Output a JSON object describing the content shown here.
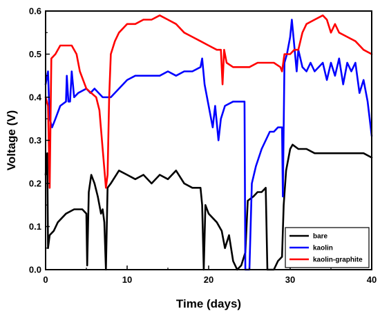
{
  "chart_data": {
    "type": "line",
    "title": "",
    "xlabel": "Time (days)",
    "ylabel": "Voltage (V)",
    "xlim": [
      0,
      40
    ],
    "ylim": [
      0,
      0.6
    ],
    "x_ticks": [
      "0",
      "10",
      "20",
      "30",
      "40"
    ],
    "y_ticks": [
      "0.0",
      "0.1",
      "0.2",
      "0.3",
      "0.4",
      "0.5",
      "0.6"
    ],
    "grid": false,
    "legend_position": "bottom-right",
    "series": [
      {
        "name": "bare",
        "color": "#000000",
        "points": [
          [
            0.0,
            0.22
          ],
          [
            0.2,
            0.27
          ],
          [
            0.3,
            0.05
          ],
          [
            0.5,
            0.08
          ],
          [
            1.0,
            0.09
          ],
          [
            1.5,
            0.11
          ],
          [
            2.5,
            0.13
          ],
          [
            3.5,
            0.14
          ],
          [
            4.5,
            0.14
          ],
          [
            5.0,
            0.13
          ],
          [
            5.1,
            0.01
          ],
          [
            5.3,
            0.18
          ],
          [
            5.6,
            0.22
          ],
          [
            6.0,
            0.2
          ],
          [
            6.4,
            0.17
          ],
          [
            6.8,
            0.13
          ],
          [
            7.0,
            0.14
          ],
          [
            7.2,
            0.11
          ],
          [
            7.4,
            0.0
          ],
          [
            7.6,
            0.19
          ],
          [
            8.0,
            0.2
          ],
          [
            9.0,
            0.23
          ],
          [
            10.0,
            0.22
          ],
          [
            11.0,
            0.21
          ],
          [
            12.0,
            0.22
          ],
          [
            13.0,
            0.2
          ],
          [
            14.0,
            0.22
          ],
          [
            15.0,
            0.21
          ],
          [
            16.0,
            0.23
          ],
          [
            17.0,
            0.2
          ],
          [
            18.0,
            0.19
          ],
          [
            19.0,
            0.19
          ],
          [
            19.2,
            0.15
          ],
          [
            19.4,
            0.0
          ],
          [
            19.6,
            0.15
          ],
          [
            20.0,
            0.13
          ],
          [
            21.0,
            0.11
          ],
          [
            21.6,
            0.09
          ],
          [
            22.0,
            0.05
          ],
          [
            22.5,
            0.08
          ],
          [
            23.0,
            0.02
          ],
          [
            23.5,
            0.0
          ],
          [
            24.0,
            0.01
          ],
          [
            24.5,
            0.04
          ],
          [
            24.8,
            0.16
          ],
          [
            25.5,
            0.17
          ],
          [
            26.0,
            0.18
          ],
          [
            26.5,
            0.18
          ],
          [
            27.0,
            0.19
          ],
          [
            27.2,
            0.0
          ],
          [
            28.0,
            0.0
          ],
          [
            28.5,
            0.02
          ],
          [
            29.0,
            0.03
          ],
          [
            29.2,
            0.15
          ],
          [
            29.5,
            0.23
          ],
          [
            30.0,
            0.28
          ],
          [
            30.3,
            0.29
          ],
          [
            31.0,
            0.28
          ],
          [
            32.0,
            0.28
          ],
          [
            33.0,
            0.27
          ],
          [
            34.0,
            0.27
          ],
          [
            35.0,
            0.27
          ],
          [
            36.0,
            0.27
          ],
          [
            37.0,
            0.27
          ],
          [
            38.0,
            0.27
          ],
          [
            39.0,
            0.27
          ],
          [
            40.0,
            0.26
          ]
        ]
      },
      {
        "name": "kaolin",
        "color": "#0000ff",
        "points": [
          [
            0.0,
            0.43
          ],
          [
            0.3,
            0.46
          ],
          [
            0.5,
            0.35
          ],
          [
            0.8,
            0.33
          ],
          [
            1.2,
            0.35
          ],
          [
            1.8,
            0.38
          ],
          [
            2.5,
            0.39
          ],
          [
            2.6,
            0.45
          ],
          [
            2.8,
            0.39
          ],
          [
            3.0,
            0.39
          ],
          [
            3.2,
            0.46
          ],
          [
            3.5,
            0.4
          ],
          [
            4.0,
            0.41
          ],
          [
            5.0,
            0.42
          ],
          [
            5.5,
            0.41
          ],
          [
            6.0,
            0.42
          ],
          [
            7.0,
            0.4
          ],
          [
            8.0,
            0.4
          ],
          [
            9.0,
            0.42
          ],
          [
            10.0,
            0.44
          ],
          [
            11.0,
            0.45
          ],
          [
            12.0,
            0.45
          ],
          [
            13.0,
            0.45
          ],
          [
            14.0,
            0.45
          ],
          [
            15.0,
            0.46
          ],
          [
            16.0,
            0.45
          ],
          [
            17.0,
            0.46
          ],
          [
            18.0,
            0.46
          ],
          [
            19.0,
            0.47
          ],
          [
            19.2,
            0.49
          ],
          [
            19.5,
            0.43
          ],
          [
            20.0,
            0.38
          ],
          [
            20.5,
            0.33
          ],
          [
            20.8,
            0.38
          ],
          [
            21.2,
            0.3
          ],
          [
            21.5,
            0.35
          ],
          [
            22.0,
            0.38
          ],
          [
            23.0,
            0.39
          ],
          [
            24.0,
            0.39
          ],
          [
            24.4,
            0.39
          ],
          [
            24.5,
            0.0
          ],
          [
            25.0,
            0.0
          ],
          [
            25.3,
            0.2
          ],
          [
            25.8,
            0.24
          ],
          [
            26.5,
            0.28
          ],
          [
            27.0,
            0.3
          ],
          [
            27.5,
            0.32
          ],
          [
            28.0,
            0.32
          ],
          [
            28.5,
            0.33
          ],
          [
            29.0,
            0.33
          ],
          [
            29.1,
            0.17
          ],
          [
            29.3,
            0.48
          ],
          [
            29.6,
            0.5
          ],
          [
            30.0,
            0.54
          ],
          [
            30.2,
            0.58
          ],
          [
            30.5,
            0.52
          ],
          [
            30.8,
            0.46
          ],
          [
            31.0,
            0.51
          ],
          [
            31.5,
            0.47
          ],
          [
            32.0,
            0.46
          ],
          [
            32.5,
            0.48
          ],
          [
            33.0,
            0.46
          ],
          [
            34.0,
            0.48
          ],
          [
            34.5,
            0.44
          ],
          [
            35.0,
            0.48
          ],
          [
            35.5,
            0.45
          ],
          [
            36.0,
            0.49
          ],
          [
            36.5,
            0.43
          ],
          [
            37.0,
            0.48
          ],
          [
            37.5,
            0.46
          ],
          [
            38.0,
            0.48
          ],
          [
            38.5,
            0.41
          ],
          [
            39.0,
            0.44
          ],
          [
            39.5,
            0.39
          ],
          [
            40.0,
            0.31
          ]
        ]
      },
      {
        "name": "kaolin-graphite",
        "color": "#ff0000",
        "points": [
          [
            0.0,
            0.4
          ],
          [
            0.3,
            0.38
          ],
          [
            0.5,
            0.19
          ],
          [
            0.7,
            0.49
          ],
          [
            1.2,
            0.5
          ],
          [
            1.8,
            0.52
          ],
          [
            2.5,
            0.52
          ],
          [
            3.2,
            0.52
          ],
          [
            3.8,
            0.5
          ],
          [
            4.2,
            0.46
          ],
          [
            5.0,
            0.42
          ],
          [
            5.6,
            0.41
          ],
          [
            6.2,
            0.4
          ],
          [
            6.6,
            0.37
          ],
          [
            7.0,
            0.28
          ],
          [
            7.4,
            0.19
          ],
          [
            7.6,
            0.22
          ],
          [
            7.8,
            0.4
          ],
          [
            8.0,
            0.5
          ],
          [
            8.5,
            0.53
          ],
          [
            9.0,
            0.55
          ],
          [
            10.0,
            0.57
          ],
          [
            11.0,
            0.57
          ],
          [
            12.0,
            0.58
          ],
          [
            13.0,
            0.58
          ],
          [
            14.0,
            0.59
          ],
          [
            15.0,
            0.58
          ],
          [
            16.0,
            0.57
          ],
          [
            17.0,
            0.55
          ],
          [
            18.0,
            0.54
          ],
          [
            19.0,
            0.53
          ],
          [
            20.0,
            0.52
          ],
          [
            21.0,
            0.51
          ],
          [
            21.5,
            0.51
          ],
          [
            21.7,
            0.43
          ],
          [
            21.9,
            0.51
          ],
          [
            22.2,
            0.48
          ],
          [
            23.0,
            0.47
          ],
          [
            24.0,
            0.47
          ],
          [
            25.0,
            0.47
          ],
          [
            26.0,
            0.48
          ],
          [
            27.0,
            0.48
          ],
          [
            28.0,
            0.48
          ],
          [
            28.8,
            0.47
          ],
          [
            29.0,
            0.46
          ],
          [
            29.3,
            0.5
          ],
          [
            30.0,
            0.5
          ],
          [
            30.5,
            0.51
          ],
          [
            31.0,
            0.51
          ],
          [
            31.5,
            0.55
          ],
          [
            32.0,
            0.57
          ],
          [
            33.0,
            0.58
          ],
          [
            34.0,
            0.59
          ],
          [
            34.5,
            0.58
          ],
          [
            35.0,
            0.55
          ],
          [
            35.5,
            0.57
          ],
          [
            36.0,
            0.55
          ],
          [
            37.0,
            0.54
          ],
          [
            38.0,
            0.53
          ],
          [
            39.0,
            0.51
          ],
          [
            40.0,
            0.5
          ]
        ]
      }
    ]
  }
}
